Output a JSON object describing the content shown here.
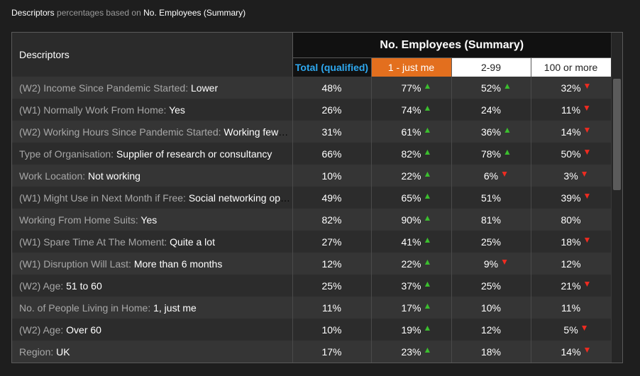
{
  "caption": {
    "strong1": "Descriptors",
    "muted": " percentages based on ",
    "strong2": "No. Employees (Summary)"
  },
  "header": {
    "descriptors": "Descriptors",
    "group": "No. Employees (Summary)",
    "columns": [
      "Total (qualified)",
      "1 - just me",
      "2-99",
      "100 or more"
    ]
  },
  "colors": {
    "up_arrow": "#3bbf2e",
    "down_arrow": "#f02b20",
    "total_header": "#2ea8ef",
    "selected_header": "#e36f1e"
  },
  "rows": [
    {
      "label": "(W2) Income Since Pandemic Started: ",
      "value": "Lower",
      "total": "48%",
      "c1": "77%",
      "c1_arrow": "up",
      "c2": "52%",
      "c2_arrow": "up",
      "c3": "32%",
      "c3_arrow": "down"
    },
    {
      "label": "(W1) Normally Work From Home: ",
      "value": "Yes",
      "total": "26%",
      "c1": "74%",
      "c1_arrow": "up",
      "c2": "24%",
      "c2_arrow": "",
      "c3": "11%",
      "c3_arrow": "down"
    },
    {
      "label": "(W2) Working Hours Since Pandemic Started: ",
      "value": "Working fewer…",
      "total": "31%",
      "c1": "61%",
      "c1_arrow": "up",
      "c2": "36%",
      "c2_arrow": "up",
      "c3": "14%",
      "c3_arrow": "down"
    },
    {
      "label": "Type of Organisation: ",
      "value": "Supplier of research or consultancy",
      "total": "66%",
      "c1": "82%",
      "c1_arrow": "up",
      "c2": "78%",
      "c2_arrow": "up",
      "c3": "50%",
      "c3_arrow": "down"
    },
    {
      "label": "Work Location: ",
      "value": "Not working",
      "total": "10%",
      "c1": "22%",
      "c1_arrow": "up",
      "c2": "6%",
      "c2_arrow": "down",
      "c3": "3%",
      "c3_arrow": "down"
    },
    {
      "label": "(W1) Might Use in Next Month if Free: ",
      "value": "Social networking opp…",
      "total": "49%",
      "c1": "65%",
      "c1_arrow": "up",
      "c2": "51%",
      "c2_arrow": "",
      "c3": "39%",
      "c3_arrow": "down"
    },
    {
      "label": "Working From Home Suits: ",
      "value": "Yes",
      "total": "82%",
      "c1": "90%",
      "c1_arrow": "up",
      "c2": "81%",
      "c2_arrow": "",
      "c3": "80%",
      "c3_arrow": ""
    },
    {
      "label": "(W1) Spare Time At The Moment: ",
      "value": "Quite a lot",
      "total": "27%",
      "c1": "41%",
      "c1_arrow": "up",
      "c2": "25%",
      "c2_arrow": "",
      "c3": "18%",
      "c3_arrow": "down"
    },
    {
      "label": "(W1) Disruption Will Last: ",
      "value": "More than 6 months",
      "total": "12%",
      "c1": "22%",
      "c1_arrow": "up",
      "c2": "9%",
      "c2_arrow": "down",
      "c3": "12%",
      "c3_arrow": ""
    },
    {
      "label": "(W2) Age: ",
      "value": "51 to 60",
      "total": "25%",
      "c1": "37%",
      "c1_arrow": "up",
      "c2": "25%",
      "c2_arrow": "",
      "c3": "21%",
      "c3_arrow": "down"
    },
    {
      "label": "No. of People Living in Home: ",
      "value": "1, just me",
      "total": "11%",
      "c1": "17%",
      "c1_arrow": "up",
      "c2": "10%",
      "c2_arrow": "",
      "c3": "11%",
      "c3_arrow": ""
    },
    {
      "label": "(W2) Age: ",
      "value": "Over 60",
      "total": "10%",
      "c1": "19%",
      "c1_arrow": "up",
      "c2": "12%",
      "c2_arrow": "",
      "c3": "5%",
      "c3_arrow": "down"
    },
    {
      "label": "Region: ",
      "value": "UK",
      "total": "17%",
      "c1": "23%",
      "c1_arrow": "up",
      "c2": "18%",
      "c2_arrow": "",
      "c3": "14%",
      "c3_arrow": "down"
    }
  ]
}
